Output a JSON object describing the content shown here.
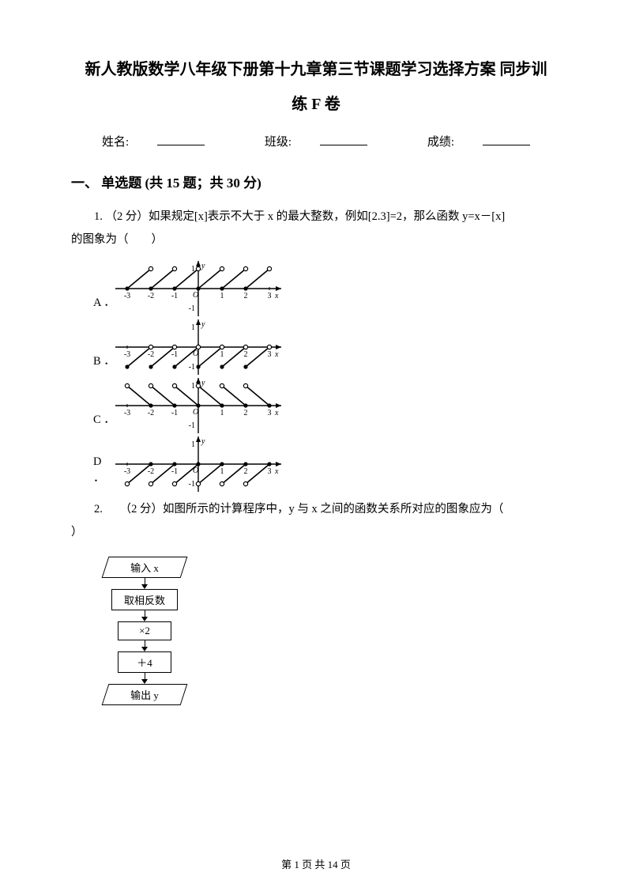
{
  "title_line1": "新人教版数学八年级下册第十九章第三节课题学习选择方案 同步训",
  "title_line2": "练 F 卷",
  "info": {
    "name_label": "姓名:",
    "class_label": "班级:",
    "score_label": "成绩:"
  },
  "section1": "一、 单选题 (共 15 题；共 30 分)",
  "q1": {
    "line1": "1.  （2 分）如果规定[x]表示不大于 x 的最大整数，例如[2.3]=2，那么函数 y=x－[x]",
    "line2": "的图象为（　　）",
    "opts": {
      "A": "A ．",
      "B": "B ．",
      "C": "C ．",
      "D": "D ．"
    },
    "graphs": {
      "A": {
        "segments": [
          [
            -3,
            0,
            -2,
            1
          ],
          [
            -2,
            0,
            -1,
            1
          ],
          [
            -1,
            0,
            0,
            1
          ],
          [
            0,
            0,
            1,
            1
          ],
          [
            1,
            0,
            2,
            1
          ],
          [
            2,
            0,
            3,
            1
          ]
        ],
        "closed_y": 0,
        "open_y": 1,
        "xlim": [
          -3.5,
          3.5
        ],
        "ylim": [
          -1.4,
          1.4
        ],
        "yticks": [
          1,
          -1
        ]
      },
      "B": {
        "segments": [
          [
            -3,
            -1,
            -2,
            0
          ],
          [
            -2,
            -1,
            -1,
            0
          ],
          [
            -1,
            -1,
            0,
            0
          ],
          [
            0,
            -1,
            1,
            0
          ],
          [
            1,
            -1,
            2,
            0
          ],
          [
            2,
            -1,
            3,
            0
          ]
        ],
        "closed_y": -1,
        "open_y": 0,
        "xlim": [
          -3.5,
          3.5
        ],
        "ylim": [
          -1.4,
          1.4
        ],
        "yticks": [
          1,
          -1
        ]
      },
      "C": {
        "segments": [
          [
            -3,
            1,
            -2,
            0
          ],
          [
            -2,
            1,
            -1,
            0
          ],
          [
            -1,
            1,
            0,
            0
          ],
          [
            0,
            1,
            1,
            0
          ],
          [
            1,
            1,
            2,
            0
          ],
          [
            2,
            1,
            3,
            0
          ]
        ],
        "closed_end": "right",
        "xlim": [
          -3.5,
          3.5
        ],
        "ylim": [
          -1.4,
          1.4
        ],
        "yticks": [
          1,
          -1
        ]
      },
      "D": {
        "segments": [
          [
            -3,
            0,
            -2,
            1
          ],
          [
            -2,
            0,
            -1,
            1
          ],
          [
            -1,
            0,
            0,
            1
          ],
          [
            0,
            0,
            1,
            1
          ],
          [
            1,
            0,
            2,
            1
          ],
          [
            2,
            0,
            3,
            1
          ]
        ],
        "closed_end": "right",
        "xlim": [
          -3.5,
          3.5
        ],
        "ylim": [
          -1.4,
          1.4
        ],
        "yticks": [
          1,
          -1
        ],
        "shift_y": -1
      }
    },
    "style": {
      "line_width": 1.6,
      "axis_width": 1.4,
      "marker_r": 2.6,
      "fill": "#000000",
      "open_fill": "#ffffff",
      "axis_color": "#000000",
      "xtick_labels": [
        "-3",
        "-2",
        "-1",
        "",
        "1",
        "2",
        "3"
      ],
      "xtick_vals": [
        -3,
        -2,
        -1,
        0,
        1,
        2,
        3
      ],
      "label_fontsize": 10
    }
  },
  "q2": {
    "line1": "2.　　（2 分）如图所示的计算程序中，y 与 x 之间的函数关系所对应的图象应为（",
    "line2": "）",
    "flow": {
      "s1": "输入 x",
      "s2": "取相反数",
      "s3": "×2",
      "s4": "＋4",
      "s5": "输出 y"
    }
  },
  "footer": {
    "page": "第 1 页 共 14 页"
  },
  "colors": {
    "text": "#000000",
    "bg": "#ffffff"
  }
}
